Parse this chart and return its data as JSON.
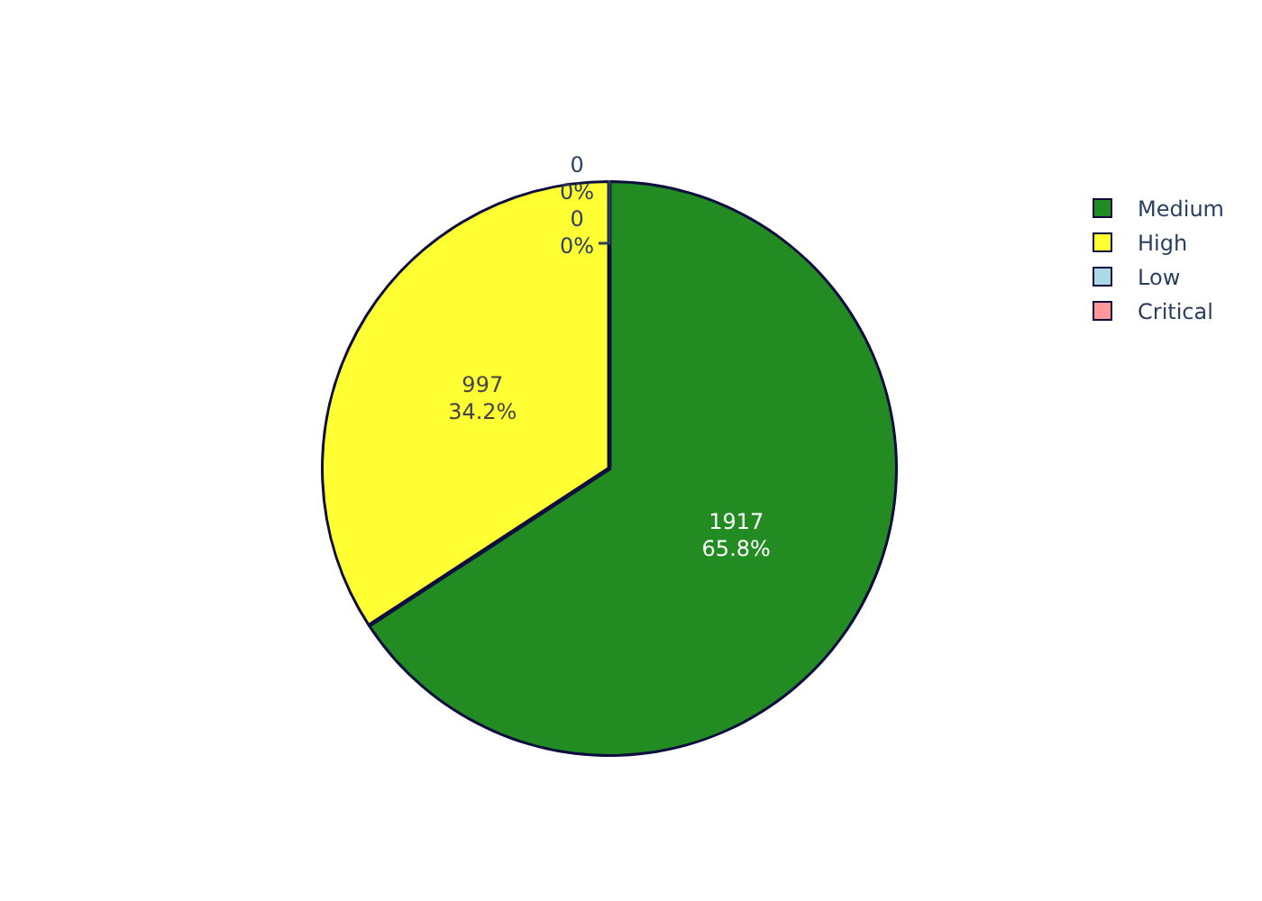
{
  "chart_data": {
    "type": "pie",
    "categories": [
      "Medium",
      "High",
      "Low",
      "Critical"
    ],
    "values": [
      1917,
      997,
      0,
      0
    ],
    "colors": [
      "#228b22",
      "#ffff33",
      "#add8e6",
      "#ff9999"
    ],
    "value_labels": [
      "1917\n65.8%",
      "997\n34.2%",
      "0\n0%",
      "0\n0%"
    ],
    "legend": "top right"
  }
}
